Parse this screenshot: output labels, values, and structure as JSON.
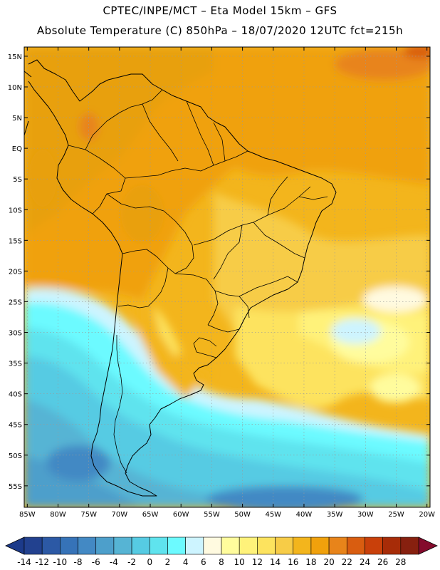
{
  "header": {
    "line1": "CPTEC/INPE/MCT –  Eta Model 15km – GFS",
    "line2": "Absolute Temperature (C) 850hPa – 18/07/2020 12UTC fct=215h"
  },
  "map": {
    "lon_range": [
      -85.5,
      -19.5
    ],
    "lat_range": [
      -58.5,
      16.5
    ],
    "lon_ticks": [
      {
        "lon": -85,
        "label": "85W"
      },
      {
        "lon": -80,
        "label": "80W"
      },
      {
        "lon": -75,
        "label": "75W"
      },
      {
        "lon": -70,
        "label": "70W"
      },
      {
        "lon": -65,
        "label": "65W"
      },
      {
        "lon": -60,
        "label": "60W"
      },
      {
        "lon": -55,
        "label": "55W"
      },
      {
        "lon": -50,
        "label": "50W"
      },
      {
        "lon": -45,
        "label": "45W"
      },
      {
        "lon": -40,
        "label": "40W"
      },
      {
        "lon": -35,
        "label": "35W"
      },
      {
        "lon": -30,
        "label": "30W"
      },
      {
        "lon": -25,
        "label": "25W"
      },
      {
        "lon": -20,
        "label": "20W"
      }
    ],
    "lat_ticks": [
      {
        "lat": 15,
        "label": "15N"
      },
      {
        "lat": 10,
        "label": "10N"
      },
      {
        "lat": 5,
        "label": "5N"
      },
      {
        "lat": 0,
        "label": "EQ"
      },
      {
        "lat": -5,
        "label": "5S"
      },
      {
        "lat": -10,
        "label": "10S"
      },
      {
        "lat": -15,
        "label": "15S"
      },
      {
        "lat": -20,
        "label": "20S"
      },
      {
        "lat": -25,
        "label": "25S"
      },
      {
        "lat": -30,
        "label": "30S"
      },
      {
        "lat": -35,
        "label": "35S"
      },
      {
        "lat": -40,
        "label": "40S"
      },
      {
        "lat": -45,
        "label": "45S"
      },
      {
        "lat": -50,
        "label": "50S"
      },
      {
        "lat": -55,
        "label": "55S"
      }
    ]
  },
  "colorbar": {
    "labels": [
      "-14",
      "-12",
      "-10",
      "-8",
      "-6",
      "-4",
      "-2",
      "0",
      "2",
      "4",
      "6",
      "8",
      "10",
      "12",
      "14",
      "16",
      "18",
      "20",
      "22",
      "24",
      "26",
      "28"
    ],
    "colors": [
      "#22418f",
      "#2c59a5",
      "#3673b8",
      "#4389c4",
      "#4d9fcb",
      "#56b4d4",
      "#56cbe3",
      "#5fe3ee",
      "#6cfaff",
      "#cdf4ff",
      "#fffae0",
      "#fffc9d",
      "#fff27a",
      "#fde35e",
      "#f7cc47",
      "#f3b51c",
      "#f0a10c",
      "#e8841a",
      "#d95d10",
      "#c9400a",
      "#a72c08",
      "#87200f"
    ],
    "under_color": "#1c3a8a",
    "over_color": "#840a2c"
  }
}
